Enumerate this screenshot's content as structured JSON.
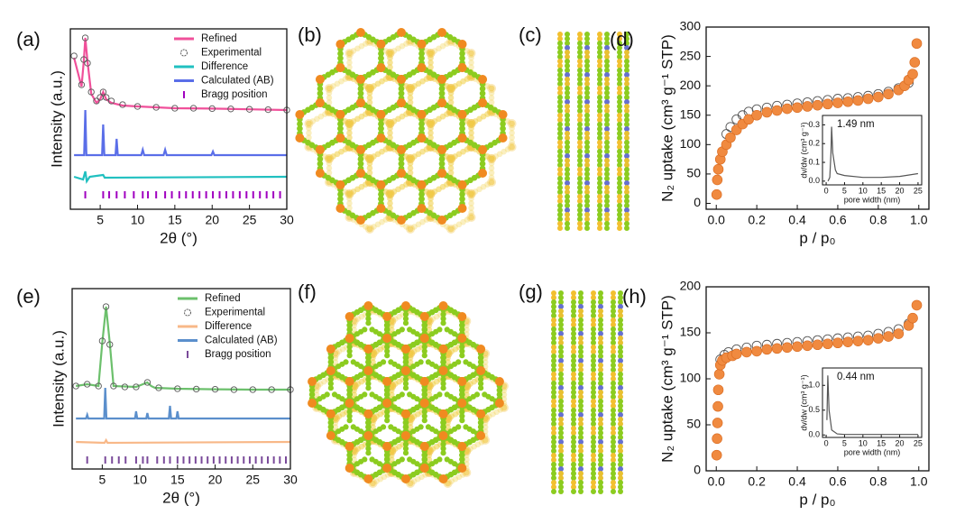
{
  "chart_data": [
    {
      "type": "line",
      "panel_label": "(a)",
      "xlabel": "2θ (°)",
      "ylabel": "Intensity (a.u.)",
      "xlim": [
        1,
        30
      ],
      "ylim": [
        0,
        100
      ],
      "xticks": [
        5,
        10,
        15,
        20,
        25,
        30
      ],
      "legend": "upper right",
      "series": [
        {
          "name": "Refined",
          "color": "#f0509a",
          "marker": "line",
          "x": [
            1.5,
            2.5,
            2.8,
            3.0,
            3.3,
            3.8,
            4.5,
            5.0,
            5.4,
            5.8,
            6.5,
            8,
            10,
            15,
            20,
            25,
            30
          ],
          "values": [
            84,
            68,
            82,
            95,
            82,
            64,
            59,
            61,
            65,
            61,
            59,
            57.5,
            57,
            56,
            55.8,
            55.4,
            55
          ]
        },
        {
          "name": "Experimental",
          "color": "#555555",
          "marker": "open",
          "x": [
            1.5,
            2.5,
            2.8,
            3.0,
            3.3,
            3.8,
            4.5,
            5.0,
            5.4,
            5.8,
            6.5,
            8,
            10,
            12.5,
            15,
            17.5,
            20,
            22.5,
            25,
            27.5,
            30
          ],
          "values": [
            85,
            69,
            83,
            95,
            81,
            65,
            60,
            62,
            65,
            62,
            60,
            58,
            57,
            56.5,
            56,
            56,
            55.8,
            55.6,
            55.4,
            55.2,
            55
          ]
        },
        {
          "name": "Difference",
          "color": "#20c0c0",
          "marker": "line",
          "x": [
            1.5,
            2.7,
            3.0,
            3.2,
            3.6,
            5.4,
            5.6,
            30
          ],
          "values": [
            18,
            16.5,
            21,
            15.5,
            18,
            19,
            17.5,
            18
          ]
        },
        {
          "name": "Calculated (AB)",
          "color": "#5a6ee8",
          "marker": "line",
          "x": [
            1.5,
            2.85,
            3.0,
            3.15,
            5.25,
            5.4,
            5.55,
            7.05,
            7.2,
            7.35,
            10.5,
            10.7,
            10.9,
            13.5,
            13.7,
            13.9,
            19.9,
            20.1,
            20.3,
            30
          ],
          "values": [
            30,
            30,
            55,
            30,
            30,
            47,
            30,
            30,
            39,
            30,
            30,
            33,
            30,
            30,
            33,
            30,
            30,
            32,
            30,
            30
          ]
        },
        {
          "name": "Bragg position",
          "color": "#a000c0",
          "marker": "tick",
          "x": [
            3.0,
            5.4,
            6.2,
            7.2,
            8.3,
            9.5,
            10.7,
            11.4,
            12.5,
            13.7,
            14.6,
            15.6,
            16.5,
            17.4,
            18.3,
            19.2,
            20.1,
            21.0,
            21.9,
            22.8,
            23.7,
            24.6,
            25.5,
            26.4,
            27.3,
            28.2,
            29.1
          ],
          "values": [
            8,
            8,
            8,
            8,
            8,
            8,
            8,
            8,
            8,
            8,
            8,
            8,
            8,
            8,
            8,
            8,
            8,
            8,
            8,
            8,
            8,
            8,
            8,
            8,
            8,
            8,
            8
          ]
        }
      ]
    },
    {
      "type": "scatter",
      "panel_label": "(d)",
      "xlabel": "p / p₀",
      "ylabel": "N₂ uptake (cm³ g⁻¹ STP)",
      "xlim": [
        -0.05,
        1.05
      ],
      "ylim": [
        -10,
        300
      ],
      "xticks": [
        {
          "value": 0,
          "label": "0.0"
        },
        0.2,
        0.4,
        0.6,
        0.8,
        {
          "value": 1,
          "label": "1.0"
        }
      ],
      "yticks": [
        0,
        50,
        100,
        150,
        200,
        250,
        300
      ],
      "series": [
        {
          "color": "#555555",
          "marker": "open",
          "x": [
            0.05,
            0.07,
            0.1,
            0.13,
            0.16,
            0.2,
            0.25,
            0.3,
            0.35,
            0.4,
            0.45,
            0.5,
            0.55,
            0.6,
            0.65,
            0.7,
            0.75,
            0.8,
            0.85,
            0.9,
            0.95
          ],
          "values": [
            118,
            130,
            143,
            150,
            156,
            160,
            163,
            166,
            168,
            170,
            172,
            174,
            176,
            178,
            179,
            181,
            183,
            186,
            190,
            196,
            205
          ]
        },
        {
          "color": "#f08a40",
          "marker": "filled",
          "x": [
            0.002,
            0.005,
            0.01,
            0.02,
            0.03,
            0.05,
            0.07,
            0.1,
            0.13,
            0.16,
            0.2,
            0.25,
            0.3,
            0.35,
            0.4,
            0.45,
            0.5,
            0.55,
            0.6,
            0.65,
            0.7,
            0.75,
            0.8,
            0.85,
            0.9,
            0.93,
            0.95,
            0.97,
            0.98,
            0.99
          ],
          "values": [
            15,
            40,
            58,
            75,
            88,
            100,
            112,
            125,
            135,
            143,
            150,
            155,
            158,
            161,
            163,
            165,
            167,
            169,
            171,
            173,
            175,
            178,
            181,
            186,
            193,
            200,
            210,
            220,
            240,
            272
          ]
        }
      ],
      "inset": {
        "annotation": "1.49 nm",
        "xlabel": "pore width (nm)",
        "ylabel": "dv/dw (cm³ g⁻¹)",
        "xlim": [
          -1,
          26
        ],
        "ylim": [
          -0.02,
          0.35
        ],
        "xticks": [
          0,
          5,
          10,
          15,
          20,
          25
        ],
        "yticks": [
          {
            "value": 0,
            "label": "0.0"
          },
          0.1,
          0.2,
          0.3
        ],
        "series": [
          {
            "color": "#555555",
            "marker": "line",
            "x": [
              0.5,
              1.0,
              1.3,
              1.49,
              1.8,
              2.5,
              3,
              5,
              10,
              15,
              20,
              25
            ],
            "values": [
              0.0,
              0.02,
              0.15,
              0.29,
              0.15,
              0.06,
              0.04,
              0.03,
              0.02,
              0.02,
              0.025,
              0.04
            ]
          }
        ]
      }
    },
    {
      "type": "line",
      "panel_label": "(e)",
      "xlabel": "2θ (°)",
      "ylabel": "Intensity (a.u.)",
      "xlim": [
        1,
        30
      ],
      "ylim": [
        0,
        100
      ],
      "xticks": [
        5,
        10,
        15,
        20,
        25,
        30
      ],
      "legend": "upper right",
      "series": [
        {
          "name": "Refined",
          "color": "#6cc06c",
          "marker": "line",
          "x": [
            1.5,
            3.0,
            4.5,
            5.0,
            5.5,
            6.0,
            6.5,
            9.5,
            11.0,
            11.5,
            12.0,
            15,
            20,
            25,
            30
          ],
          "values": [
            46,
            47,
            46,
            70,
            90,
            70,
            46,
            45.5,
            48,
            46,
            45,
            44.5,
            44.2,
            44,
            44
          ]
        },
        {
          "name": "Experimental",
          "color": "#555555",
          "marker": "open",
          "x": [
            1.5,
            3.0,
            4.5,
            5.0,
            5.5,
            6.0,
            6.5,
            8,
            9.5,
            11.0,
            12.5,
            15,
            17.5,
            20,
            22.5,
            25,
            27.5,
            30
          ],
          "values": [
            46,
            47,
            46,
            71,
            90,
            69,
            46,
            45.5,
            45.5,
            48,
            45,
            44.5,
            44.3,
            44.2,
            44,
            44,
            44,
            44
          ]
        },
        {
          "name": "Difference",
          "color": "#f8b888",
          "marker": "line",
          "x": [
            1.5,
            5.3,
            5.5,
            5.7,
            30
          ],
          "values": [
            15,
            14.5,
            16,
            14.5,
            15
          ]
        },
        {
          "name": "Calculated (AB)",
          "color": "#5b8fcc",
          "marker": "line",
          "x": [
            1.5,
            2.85,
            3.0,
            3.15,
            5.25,
            5.4,
            5.55,
            9.35,
            9.5,
            9.65,
            10.85,
            11.0,
            11.15,
            13.85,
            14.0,
            14.15,
            14.85,
            15.0,
            15.15,
            30
          ],
          "values": [
            28,
            28,
            30,
            28,
            28,
            45,
            28,
            28,
            32,
            28,
            28,
            31,
            28,
            28,
            35,
            28,
            28,
            32,
            28,
            28
          ]
        },
        {
          "name": "Bragg position",
          "color": "#7a4a9a",
          "marker": "tick",
          "x": [
            3.0,
            5.4,
            6.3,
            7.2,
            8.1,
            9.5,
            10.4,
            11.0,
            12.3,
            13.2,
            14.0,
            15.0,
            15.8,
            16.6,
            17.4,
            18.2,
            19.0,
            19.8,
            20.6,
            21.4,
            22.2,
            23.0,
            23.8,
            24.6,
            25.4,
            26.2,
            27.0,
            27.8,
            28.6,
            29.4
          ],
          "values": [
            5,
            5,
            5,
            5,
            5,
            5,
            5,
            5,
            5,
            5,
            5,
            5,
            5,
            5,
            5,
            5,
            5,
            5,
            5,
            5,
            5,
            5,
            5,
            5,
            5,
            5,
            5,
            5,
            5,
            5
          ]
        }
      ]
    },
    {
      "type": "scatter",
      "panel_label": "(h)",
      "xlabel": "p / p₀",
      "ylabel": "N₂ uptake (cm³ g⁻¹ STP)",
      "xlim": [
        -0.05,
        1.05
      ],
      "ylim": [
        0,
        200
      ],
      "xticks": [
        {
          "value": 0,
          "label": "0.0"
        },
        0.2,
        0.4,
        0.6,
        0.8,
        {
          "value": 1,
          "label": "1.0"
        }
      ],
      "yticks": [
        0,
        50,
        100,
        150,
        200
      ],
      "series": [
        {
          "color": "#555555",
          "marker": "open",
          "x": [
            0.02,
            0.04,
            0.06,
            0.1,
            0.15,
            0.2,
            0.25,
            0.3,
            0.35,
            0.4,
            0.45,
            0.5,
            0.55,
            0.6,
            0.65,
            0.7,
            0.75,
            0.8,
            0.85,
            0.9,
            0.95
          ],
          "values": [
            121,
            126,
            129,
            132,
            134,
            136,
            137,
            138,
            139,
            140,
            141,
            142,
            143,
            144,
            145,
            146,
            147,
            149,
            151,
            154,
            160
          ]
        },
        {
          "color": "#f08a40",
          "marker": "filled",
          "x": [
            0.002,
            0.004,
            0.006,
            0.008,
            0.01,
            0.015,
            0.02,
            0.03,
            0.05,
            0.08,
            0.1,
            0.15,
            0.2,
            0.25,
            0.3,
            0.35,
            0.4,
            0.45,
            0.5,
            0.55,
            0.6,
            0.65,
            0.7,
            0.75,
            0.8,
            0.85,
            0.9,
            0.95,
            0.97,
            0.99
          ],
          "values": [
            17,
            35,
            52,
            70,
            88,
            105,
            115,
            120,
            123,
            125,
            127,
            129,
            130,
            132,
            133,
            134,
            135,
            136,
            137,
            138,
            139,
            140,
            141,
            142,
            144,
            146,
            149,
            158,
            166,
            180
          ]
        }
      ],
      "inset": {
        "annotation": "0.44 nm",
        "xlabel": "pore width (nm)",
        "ylabel": "dv/dw (cm³ g⁻¹)",
        "xlim": [
          -1,
          26
        ],
        "ylim": [
          -0.05,
          1.35
        ],
        "xticks": [
          0,
          5,
          10,
          15,
          20,
          25
        ],
        "yticks": [
          {
            "value": 0,
            "label": "0.0"
          },
          0.5,
          {
            "value": 1,
            "label": "1.0"
          }
        ],
        "series": [
          {
            "color": "#555555",
            "marker": "line",
            "x": [
              0.2,
              0.44,
              0.8,
              1.5,
              3,
              5,
              10,
              25
            ],
            "values": [
              0.3,
              1.2,
              0.5,
              0.1,
              0.02,
              0.01,
              0.01,
              0.01
            ]
          }
        ]
      }
    }
  ],
  "figures": [
    {
      "panel_label": "(b)"
    },
    {
      "panel_label": "(c)"
    },
    {
      "panel_label": "(f)"
    },
    {
      "panel_label": "(g)"
    }
  ]
}
